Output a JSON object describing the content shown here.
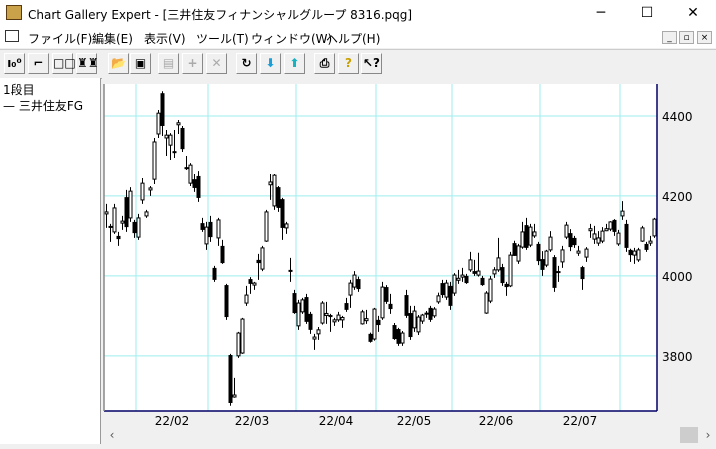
{
  "window": {
    "title": "Chart Gallery Expert - [三井住友フィナンシャルグループ 8316.pqg]",
    "minimize": "─",
    "maximize": "☐",
    "close": "✕"
  },
  "menu": {
    "items": [
      "ファイル(F)",
      "編集(E)",
      "表示(V)",
      "ツール(T)",
      "ウィンドウ(W)",
      "ヘルプ(H)"
    ],
    "mdi": [
      "_",
      "▫",
      "×"
    ]
  },
  "toolbar": {
    "buttons": [
      {
        "icon": "candle-chart-icon",
        "glyph": "ı₀⁰"
      },
      {
        "icon": "step-chart-icon",
        "glyph": "⌐"
      },
      {
        "icon": "two-panes-icon",
        "glyph": "□□"
      },
      {
        "icon": "binoculars-icon",
        "glyph": "♜♜"
      },
      {
        "icon": "open-folder-icon",
        "glyph": "📂"
      },
      {
        "icon": "save-disk-icon",
        "glyph": "▣"
      },
      {
        "icon": "properties-icon",
        "glyph": "▤"
      },
      {
        "icon": "add-icon",
        "glyph": "+"
      },
      {
        "icon": "delete-icon",
        "glyph": "✕"
      },
      {
        "icon": "refresh-icon",
        "glyph": "↻"
      },
      {
        "icon": "download-arrow-icon",
        "glyph": "⬇"
      },
      {
        "icon": "upload-arrow-icon",
        "glyph": "⬆"
      },
      {
        "icon": "print-icon",
        "glyph": "⎙"
      },
      {
        "icon": "help-icon",
        "glyph": "?"
      },
      {
        "icon": "context-help-icon",
        "glyph": "↖?"
      }
    ]
  },
  "left_panel": {
    "tier": "1段目",
    "series": "— 三井住友FG"
  },
  "colors": {
    "grid": "#9eeeee",
    "frame": "#000066",
    "candle": "#000000"
  },
  "chart_data": {
    "type": "candlestick",
    "ylim": [
      3662,
      4480
    ],
    "yticks": [
      3800,
      4000,
      4200,
      4400
    ],
    "grid": true,
    "month_labels": [
      "22/02",
      "22/03",
      "22/04",
      "22/05",
      "22/06",
      "22/07"
    ],
    "month_start_index": [
      8,
      26,
      48,
      68,
      87,
      109,
      129
    ],
    "ohlc": [
      [
        4155,
        4180,
        4120,
        4160
      ],
      [
        4125,
        4130,
        4085,
        4120
      ],
      [
        4110,
        4180,
        4105,
        4170
      ],
      [
        4100,
        4110,
        4075,
        4092
      ],
      [
        4135,
        4150,
        4115,
        4137
      ],
      [
        4197,
        4215,
        4110,
        4122
      ],
      [
        4145,
        4222,
        4135,
        4212
      ],
      [
        4135,
        4140,
        4095,
        4107
      ],
      [
        4097,
        4155,
        4090,
        4145
      ],
      [
        4190,
        4245,
        4180,
        4232
      ],
      [
        4150,
        4165,
        4145,
        4160
      ],
      [
        4215,
        4225,
        4200,
        4220
      ],
      [
        4242,
        4345,
        4230,
        4335
      ],
      [
        4355,
        4415,
        4345,
        4407
      ],
      [
        4457,
        4462,
        4350,
        4375
      ],
      [
        4345,
        4365,
        4300,
        4352
      ],
      [
        4327,
        4357,
        4290,
        4352
      ],
      [
        4312,
        4365,
        4295,
        4308
      ],
      [
        4380,
        4390,
        4355,
        4383
      ],
      [
        4370,
        4375,
        4310,
        4317
      ],
      [
        4272,
        4300,
        4265,
        4268
      ],
      [
        4232,
        4282,
        4225,
        4277
      ],
      [
        4242,
        4255,
        4210,
        4220
      ],
      [
        4250,
        4262,
        4185,
        4195
      ],
      [
        4132,
        4145,
        4110,
        4115
      ],
      [
        4080,
        4135,
        4065,
        4122
      ],
      [
        4135,
        4150,
        4085,
        4097
      ],
      [
        4020,
        4025,
        3985,
        3990
      ],
      [
        4095,
        4145,
        4075,
        4140
      ],
      [
        4075,
        4090,
        4030,
        4032
      ],
      [
        3977,
        3980,
        3890,
        3897
      ],
      [
        3802,
        3805,
        3675,
        3682
      ],
      [
        3700,
        3745,
        3695,
        3702
      ],
      [
        3800,
        3860,
        3795,
        3857
      ],
      [
        3807,
        3895,
        3805,
        3892
      ],
      [
        3932,
        3975,
        3925,
        3952
      ],
      [
        3992,
        3997,
        3955,
        3980
      ],
      [
        3978,
        3985,
        3965,
        3982
      ],
      [
        4040,
        4055,
        3990,
        4032
      ],
      [
        4017,
        4075,
        4012,
        4070
      ],
      [
        4087,
        4165,
        4085,
        4160
      ],
      [
        4228,
        4255,
        4190,
        4235
      ],
      [
        4175,
        4255,
        4165,
        4252
      ],
      [
        4222,
        4225,
        4160,
        4170
      ],
      [
        4192,
        4195,
        4090,
        4120
      ],
      [
        4120,
        4135,
        4105,
        4130
      ],
      [
        4015,
        4045,
        3985,
        4010
      ],
      [
        3957,
        3965,
        3905,
        3907
      ],
      [
        3875,
        3940,
        3865,
        3932
      ],
      [
        3910,
        3945,
        3905,
        3940
      ],
      [
        3947,
        3955,
        3880,
        3885
      ],
      [
        3905,
        3910,
        3855,
        3865
      ],
      [
        3845,
        3855,
        3815,
        3847
      ],
      [
        3855,
        3872,
        3840,
        3865
      ],
      [
        3882,
        3937,
        3878,
        3932
      ],
      [
        3903,
        3935,
        3880,
        3906
      ],
      [
        3902,
        3905,
        3860,
        3901
      ],
      [
        3885,
        3895,
        3875,
        3890
      ],
      [
        3890,
        3910,
        3885,
        3902
      ],
      [
        3890,
        3900,
        3870,
        3896
      ],
      [
        3932,
        3945,
        3910,
        3915
      ],
      [
        3952,
        3990,
        3920,
        3982
      ],
      [
        3972,
        4012,
        3965,
        4002
      ],
      [
        3992,
        3998,
        3960,
        3967
      ],
      [
        3880,
        3915,
        3878,
        3910
      ],
      [
        3890,
        3915,
        3880,
        3893
      ],
      [
        3855,
        3858,
        3833,
        3835
      ],
      [
        3842,
        3920,
        3838,
        3917
      ],
      [
        3890,
        3900,
        3860,
        3877
      ],
      [
        3895,
        3985,
        3890,
        3972
      ],
      [
        3972,
        3977,
        3930,
        3935
      ],
      [
        3930,
        3955,
        3905,
        3917
      ],
      [
        3877,
        3882,
        3840,
        3842
      ],
      [
        3867,
        3870,
        3825,
        3830
      ],
      [
        3832,
        3862,
        3825,
        3857
      ],
      [
        3952,
        3965,
        3895,
        3900
      ],
      [
        3907,
        3925,
        3840,
        3847
      ],
      [
        3870,
        3925,
        3860,
        3912
      ],
      [
        3860,
        3902,
        3852,
        3897
      ],
      [
        3887,
        3905,
        3880,
        3902
      ],
      [
        3908,
        3912,
        3895,
        3906
      ],
      [
        3920,
        3925,
        3885,
        3890
      ],
      [
        3900,
        3922,
        3895,
        3917
      ],
      [
        3935,
        3958,
        3930,
        3950
      ],
      [
        3982,
        3990,
        3945,
        3952
      ],
      [
        3947,
        3990,
        3940,
        3982
      ],
      [
        3975,
        3985,
        3915,
        3925
      ],
      [
        3957,
        4007,
        3950,
        4002
      ],
      [
        3990,
        4015,
        3980,
        3994
      ],
      [
        3998,
        4020,
        3985,
        4002
      ],
      [
        4000,
        4005,
        3980,
        3982
      ],
      [
        4015,
        4060,
        4010,
        4040
      ],
      [
        4012,
        4040,
        4000,
        4005
      ],
      [
        4002,
        4058,
        3998,
        4012
      ],
      [
        3995,
        4000,
        3975,
        3977
      ],
      [
        3907,
        3962,
        3905,
        3957
      ],
      [
        3937,
        4000,
        3932,
        3992
      ],
      [
        4005,
        4022,
        3995,
        4015
      ],
      [
        4015,
        4095,
        4010,
        4045
      ],
      [
        4022,
        4030,
        3975,
        3982
      ],
      [
        3980,
        3985,
        3950,
        3972
      ],
      [
        3975,
        4060,
        3972,
        4052
      ],
      [
        4082,
        4088,
        4050,
        4050
      ],
      [
        4037,
        4080,
        4030,
        4075
      ],
      [
        4072,
        4135,
        4068,
        4110
      ],
      [
        4127,
        4145,
        4065,
        4070
      ],
      [
        4077,
        4130,
        4072,
        4122
      ],
      [
        4100,
        4130,
        4095,
        4110
      ],
      [
        4080,
        4085,
        4027,
        4037
      ],
      [
        4042,
        4062,
        4000,
        4015
      ],
      [
        4027,
        4065,
        4022,
        4062
      ],
      [
        4065,
        4112,
        4060,
        4097
      ],
      [
        4047,
        4052,
        3960,
        3970
      ],
      [
        4012,
        4025,
        3985,
        4008
      ],
      [
        4035,
        4075,
        4020,
        4065
      ],
      [
        4097,
        4135,
        4092,
        4127
      ],
      [
        4107,
        4117,
        4062,
        4072
      ],
      [
        4095,
        4100,
        4070,
        4077
      ],
      [
        4057,
        4075,
        4050,
        4062
      ],
      [
        4022,
        4025,
        3965,
        3992
      ],
      [
        4047,
        4072,
        4035,
        4067
      ],
      [
        4115,
        4130,
        4095,
        4118
      ],
      [
        4092,
        4125,
        4080,
        4105
      ],
      [
        4082,
        4112,
        4075,
        4095
      ],
      [
        4087,
        4122,
        4082,
        4112
      ],
      [
        4116,
        4130,
        4112,
        4118
      ],
      [
        4117,
        4137,
        4112,
        4135
      ],
      [
        4140,
        4142,
        4100,
        4110
      ],
      [
        4080,
        4115,
        4075,
        4107
      ],
      [
        4150,
        4187,
        4140,
        4162
      ],
      [
        4130,
        4140,
        4060,
        4070
      ],
      [
        4065,
        4068,
        4035,
        4052
      ],
      [
        4052,
        4070,
        4030,
        4062
      ],
      [
        4040,
        4070,
        4035,
        4065
      ],
      [
        4087,
        4125,
        4085,
        4120
      ],
      [
        4080,
        4085,
        4060,
        4065
      ],
      [
        4083,
        4100,
        4075,
        4087
      ],
      [
        4100,
        4145,
        4095,
        4142
      ]
    ]
  },
  "scrollbar": {
    "left": "‹",
    "right": "›"
  }
}
